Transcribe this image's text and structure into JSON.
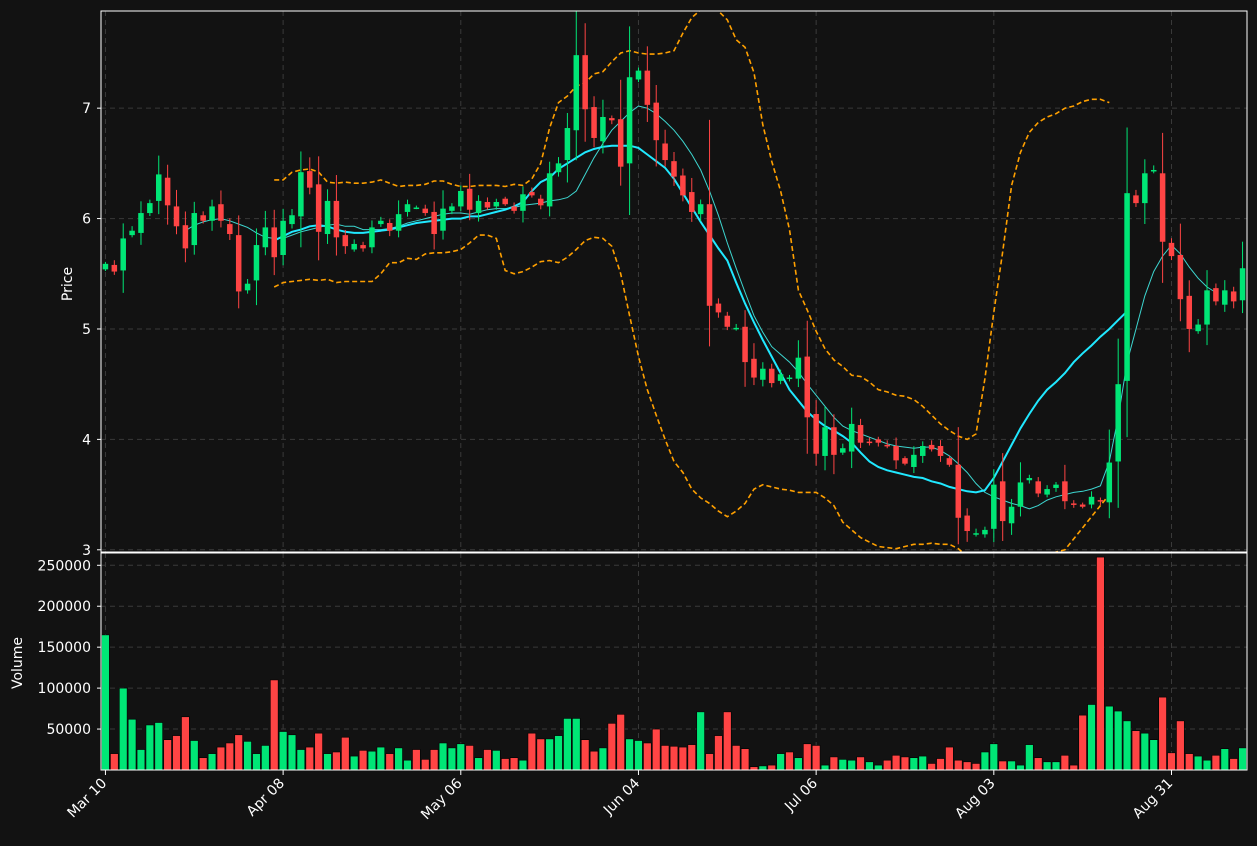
{
  "chart_data": {
    "type": "candlestick",
    "background": "#121212",
    "colors": {
      "up": "#00e676",
      "down": "#ff4444",
      "ma_fast": "#3dd6d0",
      "ma_slow": "#20e8ff",
      "bands": "#ffa000",
      "grid": "#3a3a3a",
      "axis": "#ffffff"
    },
    "price_panel": {
      "ylabel": "Price",
      "ylim": [
        2.98,
        7.88
      ],
      "yticks": [
        3,
        4,
        5,
        6,
        7
      ],
      "grid": true
    },
    "volume_panel": {
      "ylabel": "Volume",
      "ylim": [
        0,
        265000
      ],
      "yticks": [
        50000,
        100000,
        150000,
        200000,
        250000
      ],
      "grid": true
    },
    "x_axis": {
      "count": 129,
      "tick_labels": [
        "Mar 10",
        "Apr 08",
        "May 06",
        "Jun 04",
        "Jul 06",
        "Aug 03",
        "Aug 31"
      ],
      "tick_index": [
        0,
        20,
        40,
        60,
        80,
        100,
        120
      ]
    },
    "closes": [
      5.59,
      5.52,
      5.82,
      5.89,
      6.05,
      6.14,
      6.4,
      6.12,
      5.93,
      5.73,
      6.05,
      5.98,
      6.11,
      5.98,
      5.86,
      5.34,
      5.41,
      5.76,
      5.92,
      5.65,
      5.98,
      6.03,
      6.42,
      6.28,
      5.88,
      6.16,
      5.83,
      5.75,
      5.77,
      5.73,
      5.92,
      5.98,
      5.89,
      6.04,
      6.13,
      6.1,
      6.05,
      5.86,
      6.09,
      6.11,
      6.25,
      6.08,
      6.16,
      6.1,
      6.15,
      6.13,
      6.07,
      6.22,
      6.21,
      6.12,
      6.41,
      6.5,
      6.82,
      7.48,
      6.99,
      6.73,
      6.92,
      6.89,
      6.47,
      7.28,
      7.34,
      7.03,
      6.71,
      6.53,
      6.38,
      6.21,
      6.06,
      6.13,
      5.21,
      5.15,
      5.02,
      5.01,
      4.7,
      4.56,
      4.64,
      4.51,
      4.59,
      4.56,
      4.74,
      4.2,
      3.87,
      4.11,
      3.86,
      3.92,
      4.14,
      3.97,
      3.97,
      3.97,
      3.94,
      3.81,
      3.78,
      3.86,
      3.94,
      3.91,
      3.85,
      3.77,
      3.29,
      3.17,
      3.15,
      3.18,
      3.59,
      3.26,
      3.39,
      3.61,
      3.65,
      3.51,
      3.55,
      3.59,
      3.44,
      3.41,
      3.39,
      3.48,
      3.44,
      3.79,
      4.5,
      6.23,
      6.14,
      6.41,
      6.44,
      5.79,
      5.66,
      5.27,
      5.0,
      5.04,
      5.35,
      5.25,
      5.35,
      5.25,
      5.55
    ],
    "ohlc_style": "open approx previous close; wicks extend above/below body",
    "volumes": [
      165000,
      20000,
      100000,
      62000,
      25000,
      55000,
      58000,
      37000,
      42000,
      65000,
      36000,
      15000,
      20000,
      28000,
      33000,
      43000,
      35000,
      20000,
      30000,
      110000,
      47000,
      43000,
      25000,
      28000,
      45000,
      20000,
      22000,
      40000,
      17000,
      24000,
      23000,
      28000,
      20000,
      27000,
      12000,
      25000,
      13000,
      25000,
      33000,
      27000,
      32000,
      30000,
      15000,
      25000,
      24000,
      14000,
      15000,
      12000,
      45000,
      38000,
      38000,
      42000,
      63000,
      63000,
      37000,
      23000,
      27000,
      57000,
      68000,
      38000,
      36000,
      33000,
      50000,
      30000,
      29000,
      28000,
      31000,
      71000,
      20000,
      42000,
      71000,
      30000,
      26000,
      4000,
      5000,
      6000,
      20000,
      22000,
      15000,
      32000,
      30000,
      6000,
      16000,
      13000,
      12000,
      16000,
      10000,
      6000,
      12000,
      18000,
      16000,
      15000,
      17000,
      8000,
      14000,
      28000,
      12000,
      10000,
      8000,
      22000,
      32000,
      11000,
      11000,
      6000,
      31000,
      15000,
      10000,
      10000,
      18000,
      6000,
      67000,
      80000,
      260000,
      78000,
      72000,
      60000,
      48000,
      45000,
      37000,
      89000,
      21000,
      60000,
      20000,
      17000,
      12000,
      18000,
      26000,
      14000,
      27000
    ],
    "bands_start_index": 19,
    "upper_band": [
      6.35,
      6.35,
      6.42,
      6.44,
      6.45,
      6.42,
      6.33,
      6.32,
      6.33,
      6.32,
      6.32,
      6.33,
      6.35,
      6.32,
      6.29,
      6.3,
      6.3,
      6.31,
      6.34,
      6.34,
      6.31,
      6.29,
      6.29,
      6.3,
      6.3,
      6.3,
      6.29,
      6.31,
      6.3,
      6.36,
      6.5,
      6.82,
      7.05,
      7.11,
      7.2,
      7.23,
      7.31,
      7.33,
      7.42,
      7.5,
      7.52,
      7.5,
      7.49,
      7.49,
      7.5,
      7.52,
      7.68,
      7.82,
      7.89,
      7.92,
      7.88,
      7.8,
      7.62,
      7.55,
      7.32,
      6.85,
      6.52,
      6.25,
      5.9,
      5.35,
      5.17,
      4.98,
      4.82,
      4.72,
      4.66,
      4.58,
      4.57,
      4.52,
      4.45,
      4.43,
      4.4,
      4.39,
      4.36,
      4.3,
      4.22,
      4.14,
      4.08,
      4.03,
      4.0,
      4.05,
      4.55,
      5.15,
      5.7,
      6.3,
      6.6,
      6.78,
      6.87,
      6.92,
      6.95,
      7.0,
      7.02,
      7.06,
      7.08,
      7.08,
      7.05
    ],
    "lower_band": [
      5.38,
      5.42,
      5.43,
      5.44,
      5.45,
      5.44,
      5.45,
      5.42,
      5.43,
      5.43,
      5.43,
      5.43,
      5.5,
      5.6,
      5.6,
      5.64,
      5.63,
      5.68,
      5.69,
      5.69,
      5.7,
      5.72,
      5.78,
      5.85,
      5.85,
      5.82,
      5.53,
      5.5,
      5.52,
      5.56,
      5.61,
      5.62,
      5.6,
      5.65,
      5.72,
      5.8,
      5.83,
      5.82,
      5.75,
      5.5,
      5.12,
      4.75,
      4.45,
      4.22,
      4.0,
      3.8,
      3.7,
      3.55,
      3.47,
      3.42,
      3.35,
      3.3,
      3.35,
      3.42,
      3.55,
      3.59,
      3.57,
      3.55,
      3.54,
      3.52,
      3.52,
      3.52,
      3.47,
      3.4,
      3.25,
      3.18,
      3.11,
      3.07,
      3.03,
      3.02,
      3.01,
      3.03,
      3.05,
      3.05,
      3.06,
      3.05,
      3.05,
      3.01,
      2.94,
      2.88,
      2.82,
      2.78,
      2.77,
      2.8,
      2.9,
      2.95,
      2.95,
      2.95,
      2.98,
      3.0,
      3.1,
      3.2,
      3.3,
      3.4,
      3.5
    ],
    "ma_fast_start_index": 9,
    "ma_fast": [
      5.89,
      5.94,
      5.97,
      5.99,
      6.0,
      5.98,
      5.95,
      5.92,
      5.87,
      5.83,
      5.82,
      5.82,
      5.85,
      5.88,
      5.9,
      5.92,
      5.94,
      5.95,
      5.93,
      5.93,
      5.9,
      5.9,
      5.9,
      5.91,
      5.93,
      5.96,
      5.98,
      6.0,
      6.02,
      6.04,
      6.05,
      6.05,
      6.04,
      6.06,
      6.08,
      6.09,
      6.09,
      6.1,
      6.12,
      6.13,
      6.14,
      6.16,
      6.17,
      6.19,
      6.25,
      6.4,
      6.55,
      6.68,
      6.8,
      6.88,
      6.96,
      7.02,
      7.0,
      6.95,
      6.88,
      6.8,
      6.7,
      6.58,
      6.44,
      6.25,
      6.03,
      5.78,
      5.55,
      5.33,
      5.12,
      4.97,
      4.84,
      4.77,
      4.7,
      4.61,
      4.5,
      4.4,
      4.3,
      4.2,
      4.12,
      4.08,
      4.05,
      4.02,
      3.99,
      3.96,
      3.94,
      3.93,
      3.92,
      3.93,
      3.93,
      3.9,
      3.85,
      3.78,
      3.7,
      3.6,
      3.52,
      3.48,
      3.45,
      3.42,
      3.4,
      3.37,
      3.4,
      3.45,
      3.48,
      3.5,
      3.52,
      3.53,
      3.55,
      3.58,
      3.8,
      4.2,
      4.7,
      5.0,
      5.3,
      5.52,
      5.66,
      5.76,
      5.68,
      5.56,
      5.46,
      5.38,
      5.33
    ],
    "ma_slow_start_index": 19,
    "ma_slow": [
      5.8,
      5.84,
      5.88,
      5.9,
      5.93,
      5.94,
      5.93,
      5.9,
      5.88,
      5.87,
      5.87,
      5.88,
      5.89,
      5.9,
      5.92,
      5.94,
      5.96,
      5.97,
      5.98,
      5.99,
      6.0,
      6.0,
      6.02,
      6.02,
      6.04,
      6.06,
      6.08,
      6.11,
      6.15,
      6.25,
      6.33,
      6.37,
      6.45,
      6.5,
      6.55,
      6.6,
      6.63,
      6.65,
      6.66,
      6.66,
      6.66,
      6.64,
      6.58,
      6.52,
      6.46,
      6.36,
      6.23,
      6.1,
      5.97,
      5.85,
      5.73,
      5.62,
      5.42,
      5.23,
      5.06,
      4.9,
      4.75,
      4.6,
      4.45,
      4.35,
      4.25,
      4.18,
      4.12,
      4.08,
      4.03,
      3.97,
      3.88,
      3.8,
      3.75,
      3.72,
      3.7,
      3.68,
      3.66,
      3.65,
      3.62,
      3.6,
      3.57,
      3.55,
      3.53,
      3.52,
      3.54,
      3.65,
      3.8,
      3.95,
      4.1,
      4.23,
      4.35,
      4.45,
      4.52,
      4.6,
      4.7,
      4.78,
      4.85,
      4.93,
      5.0,
      5.08,
      5.16
    ]
  }
}
